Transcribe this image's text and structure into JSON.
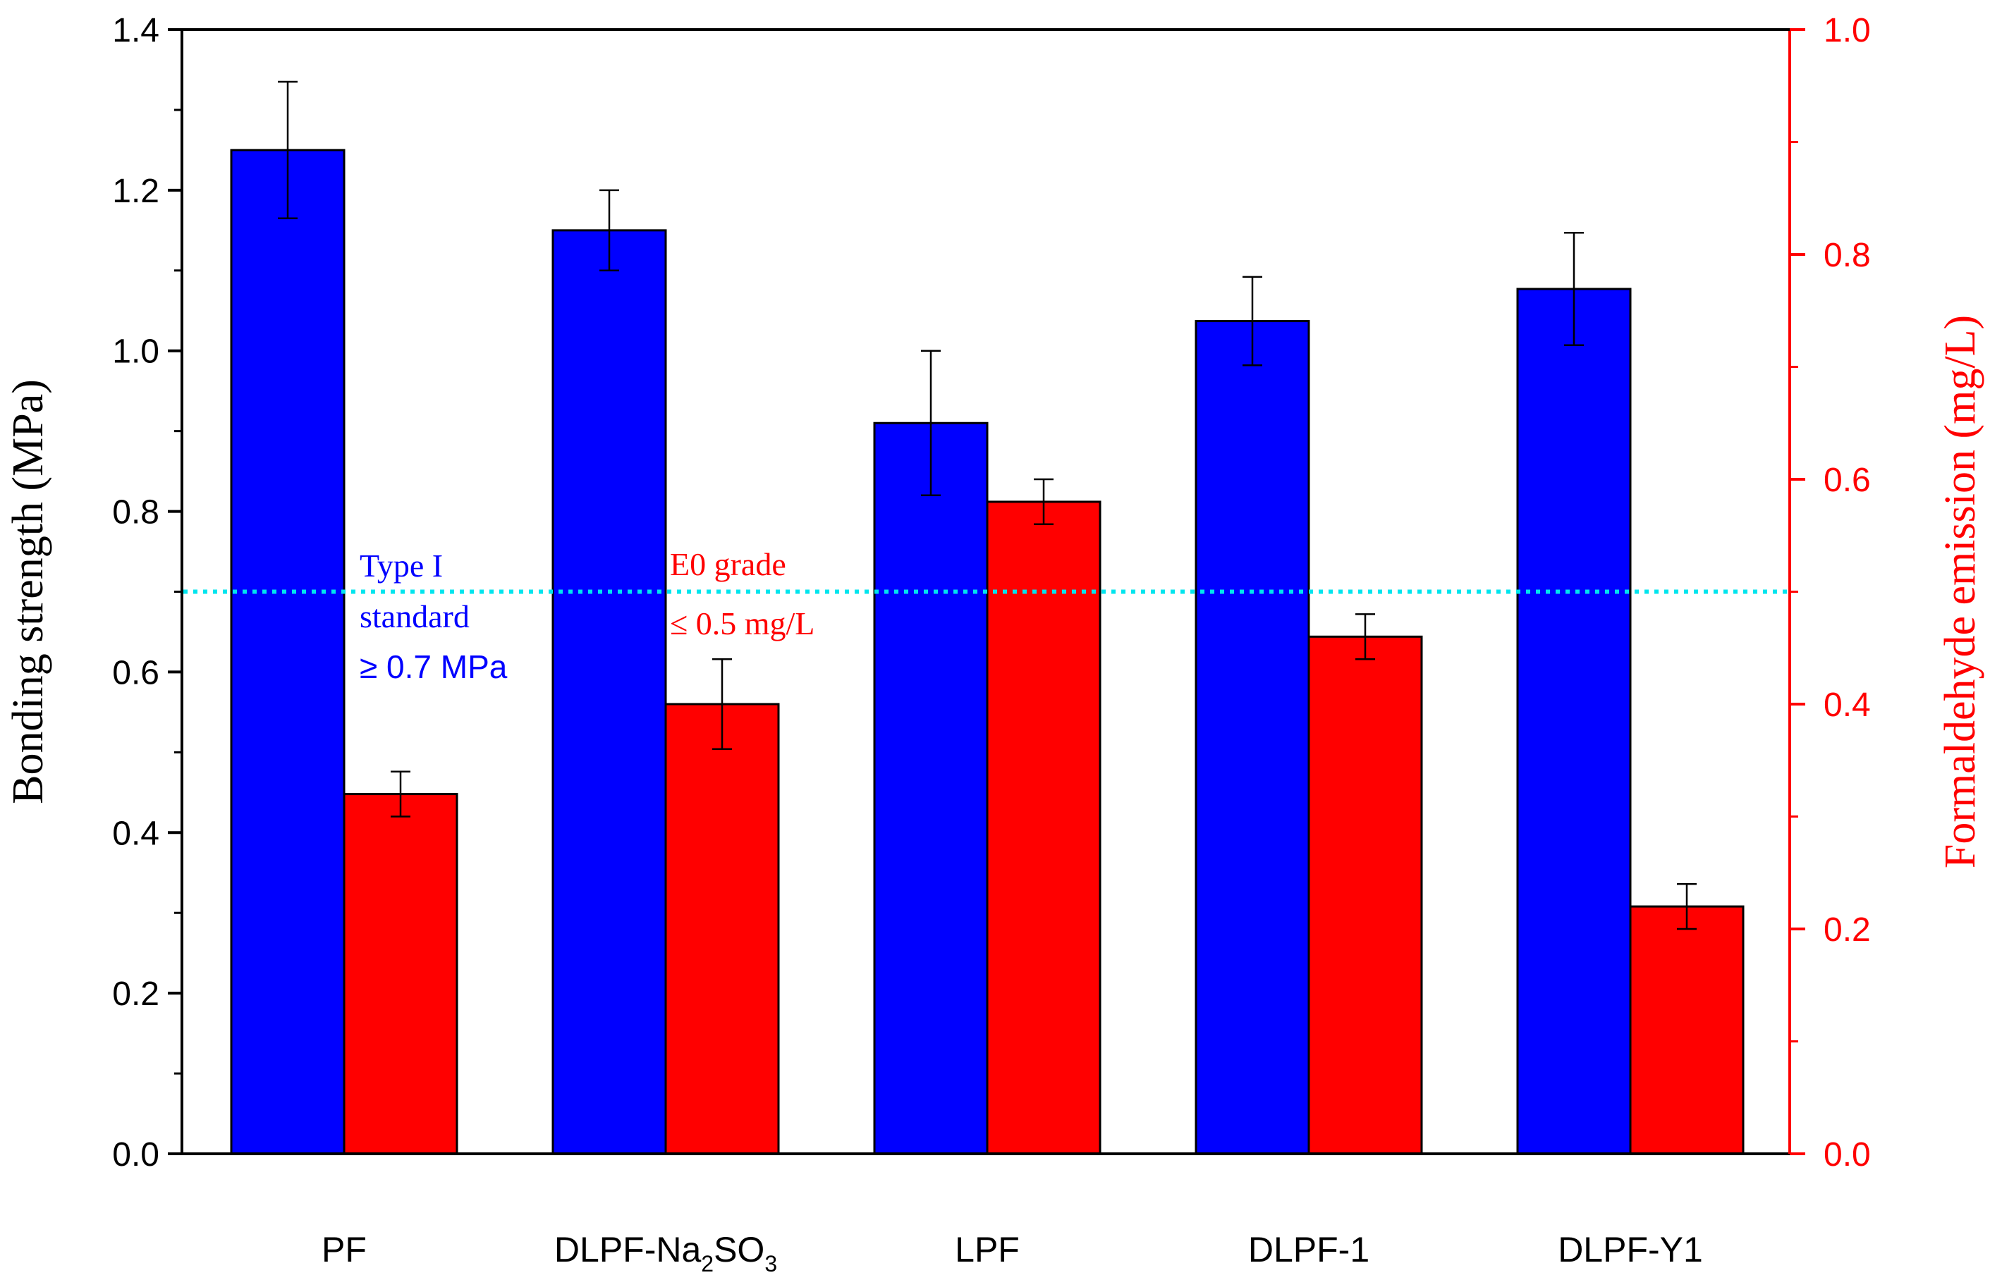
{
  "chart_data": {
    "type": "bar",
    "categories": [
      "PF",
      "DLPF-Na2SO3",
      "LPF",
      "DLPF-1",
      "DLPF-Y1"
    ],
    "category_labels": [
      {
        "base": "PF",
        "sub1": "",
        "mid": "",
        "sub2": ""
      },
      {
        "base": "DLPF-Na",
        "sub1": "2",
        "mid": "SO",
        "sub2": "3"
      },
      {
        "base": "LPF",
        "sub1": "",
        "mid": "",
        "sub2": ""
      },
      {
        "base": "DLPF-1",
        "sub1": "",
        "mid": "",
        "sub2": ""
      },
      {
        "base": "DLPF-Y1",
        "sub1": "",
        "mid": "",
        "sub2": ""
      }
    ],
    "series": [
      {
        "name": "Bonding strength",
        "axis": "left",
        "color": "#0000ff",
        "values": [
          1.25,
          1.15,
          0.91,
          1.037,
          1.077
        ],
        "errors": [
          0.085,
          0.05,
          0.09,
          0.055,
          0.07
        ]
      },
      {
        "name": "Formaldehyde emission",
        "axis": "right",
        "color": "#ff0000",
        "values": [
          0.32,
          0.4,
          0.58,
          0.46,
          0.22
        ],
        "errors": [
          0.02,
          0.04,
          0.02,
          0.02,
          0.02
        ]
      }
    ],
    "ylabel": "Bonding strength (MPa)",
    "y2label": "Formaldehyde emission (mg/L)",
    "ylim": [
      0.0,
      1.4
    ],
    "y2lim": [
      0.0,
      1.0
    ],
    "yticks": [
      "0.0",
      "0.2",
      "0.4",
      "0.6",
      "0.8",
      "1.0",
      "1.2",
      "1.4"
    ],
    "y2ticks": [
      "0.0",
      "0.2",
      "0.4",
      "0.6",
      "0.8",
      "1.0"
    ],
    "reference_line": {
      "axis": "left",
      "value": 0.7,
      "color": "#00e5ee",
      "style": "dotted"
    },
    "annotations": [
      {
        "id": "type1",
        "color": "#0000ff",
        "lines": [
          "Type I",
          "standard",
          "≥ 0.7 MPa"
        ]
      },
      {
        "id": "e0",
        "color": "#ff0000",
        "lines": [
          "E0 grade",
          "≤ 0.5 mg/L"
        ]
      }
    ],
    "grid": false,
    "legend": "none"
  }
}
